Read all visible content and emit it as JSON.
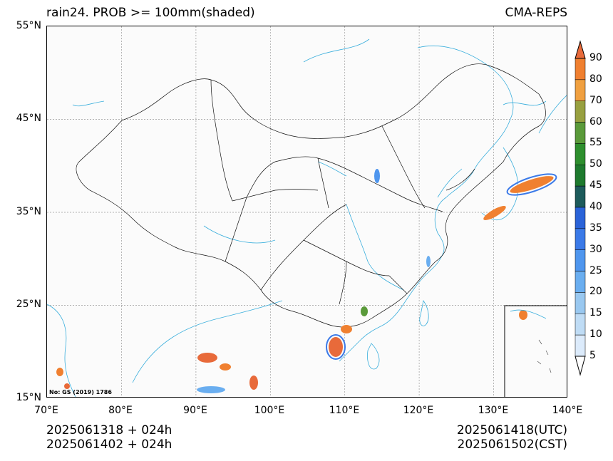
{
  "title": {
    "left": "rain24. PROB >= 100mm(shaded)",
    "right": "CMA-REPS"
  },
  "lat_labels": [
    "55°N",
    "45°N",
    "35°N",
    "25°N",
    "15°N"
  ],
  "lon_labels": [
    "70°E",
    "80°E",
    "90°E",
    "100°E",
    "110°E",
    "120°E",
    "130°E",
    "140°E"
  ],
  "extent": {
    "lon": [
      70,
      140
    ],
    "lat": [
      15,
      55
    ]
  },
  "map_note": "No: GS (2019) 1786",
  "footer": {
    "left_line1": "2025061318  +  024h",
    "left_line2": "2025061402  +  024h",
    "right_line1": "2025061418(UTC)",
    "right_line2": "2025061502(CST)"
  },
  "colorbar": {
    "levels": [
      "5",
      "10",
      "15",
      "20",
      "25",
      "30",
      "35",
      "40",
      "45",
      "50",
      "55",
      "60",
      "70",
      "80",
      "90"
    ],
    "colors": [
      "#ffffff",
      "#dcebfb",
      "#bfdcf5",
      "#99c8f0",
      "#6aaef0",
      "#4f96ee",
      "#3b7ae8",
      "#2a63d8",
      "#1d5b5b",
      "#1e7a2e",
      "#2e8f2e",
      "#5a9a3a",
      "#98a040",
      "#f0a040",
      "#f08030",
      "#e86a3a"
    ]
  },
  "icons": [
    "colorbar-top-arrow-icon",
    "colorbar-bottom-arrow-icon"
  ]
}
